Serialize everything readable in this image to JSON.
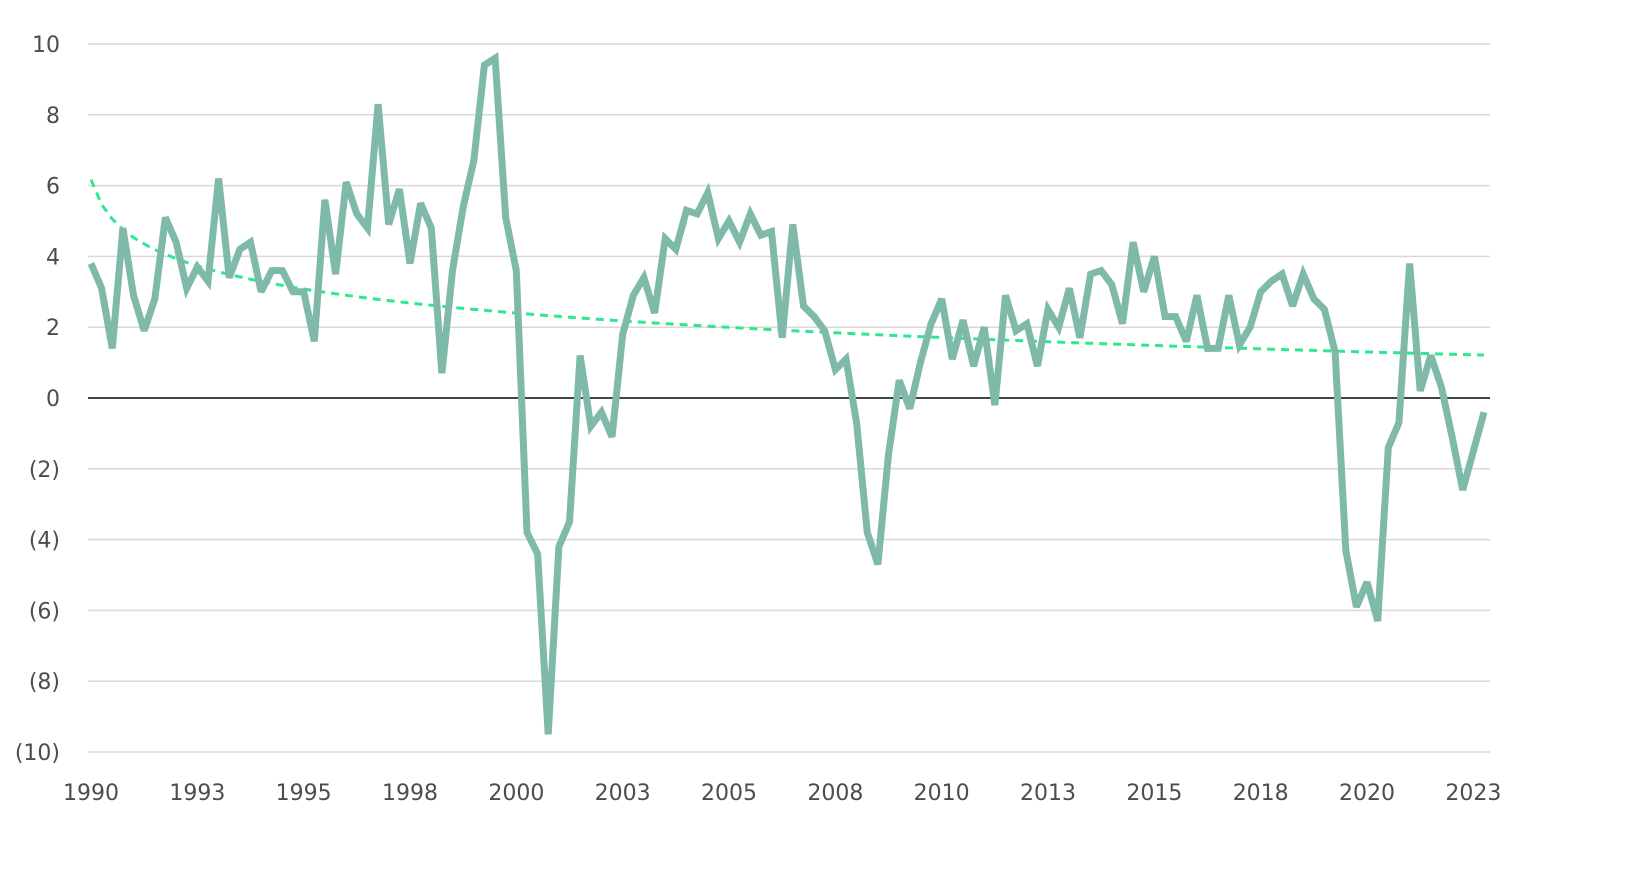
{
  "chart_data": {
    "type": "line",
    "title": "",
    "xlabel": "",
    "ylabel": "",
    "ylim": [
      -10,
      10
    ],
    "y_ticks": [
      10,
      8,
      6,
      4,
      2,
      0,
      -2,
      -4,
      -6,
      -8,
      -10
    ],
    "y_tick_labels": [
      "10",
      "8",
      "6",
      "4",
      "2",
      "0",
      "(2)",
      "(4)",
      "(6)",
      "(8)",
      "(10)"
    ],
    "x_tick_labels": [
      "1990",
      "1993",
      "1995",
      "1998",
      "2000",
      "2003",
      "2005",
      "2008",
      "2010",
      "2013",
      "2015",
      "2018",
      "2020",
      "2023"
    ],
    "x_tick_every_n_points": 10,
    "grid": "horizontal",
    "legend": "none",
    "series": [
      {
        "color": "#7fb9a9",
        "style": "solid",
        "values": [
          3.8,
          3.1,
          1.4,
          4.8,
          2.9,
          1.9,
          2.8,
          5.1,
          4.4,
          3.1,
          3.7,
          3.3,
          6.2,
          3.4,
          4.2,
          4.4,
          3.0,
          3.6,
          3.6,
          3.0,
          3.0,
          1.6,
          5.6,
          3.5,
          6.1,
          5.2,
          4.8,
          8.3,
          4.9,
          5.9,
          3.8,
          5.5,
          4.8,
          0.7,
          3.6,
          5.4,
          6.7,
          9.4,
          9.6,
          5.1,
          3.6,
          -3.8,
          -4.4,
          -9.5,
          -4.2,
          -3.5,
          1.2,
          -0.8,
          -0.4,
          -1.1,
          1.8,
          2.9,
          3.4,
          2.4,
          4.5,
          4.2,
          5.3,
          5.2,
          5.8,
          4.5,
          5.0,
          4.4,
          5.2,
          4.6,
          4.7,
          1.7,
          4.9,
          2.6,
          2.3,
          1.9,
          0.8,
          1.1,
          -0.7,
          -3.8,
          -4.7,
          -1.6,
          0.5,
          -0.3,
          1.0,
          2.1,
          2.8,
          1.1,
          2.2,
          0.9,
          2.0,
          -0.2,
          2.9,
          1.9,
          2.1,
          0.9,
          2.5,
          2.0,
          3.1,
          1.7,
          3.5,
          3.6,
          3.2,
          2.1,
          4.4,
          3.0,
          4.0,
          2.3,
          2.3,
          1.6,
          2.9,
          1.4,
          1.4,
          2.9,
          1.5,
          2.0,
          3.0,
          3.3,
          3.5,
          2.6,
          3.5,
          2.8,
          2.5,
          1.3,
          -4.3,
          -5.9,
          -5.2,
          -6.3,
          -1.4,
          -0.7,
          3.8,
          0.2,
          1.2,
          0.3,
          -1.1,
          -2.6,
          -1.5,
          -0.4
        ]
      }
    ],
    "trendline": {
      "type": "logarithmic",
      "color": "#2ee88f",
      "style": "dashed"
    },
    "colors": {
      "grid": "#d9d9d9",
      "zero_line": "#3d4745"
    }
  }
}
